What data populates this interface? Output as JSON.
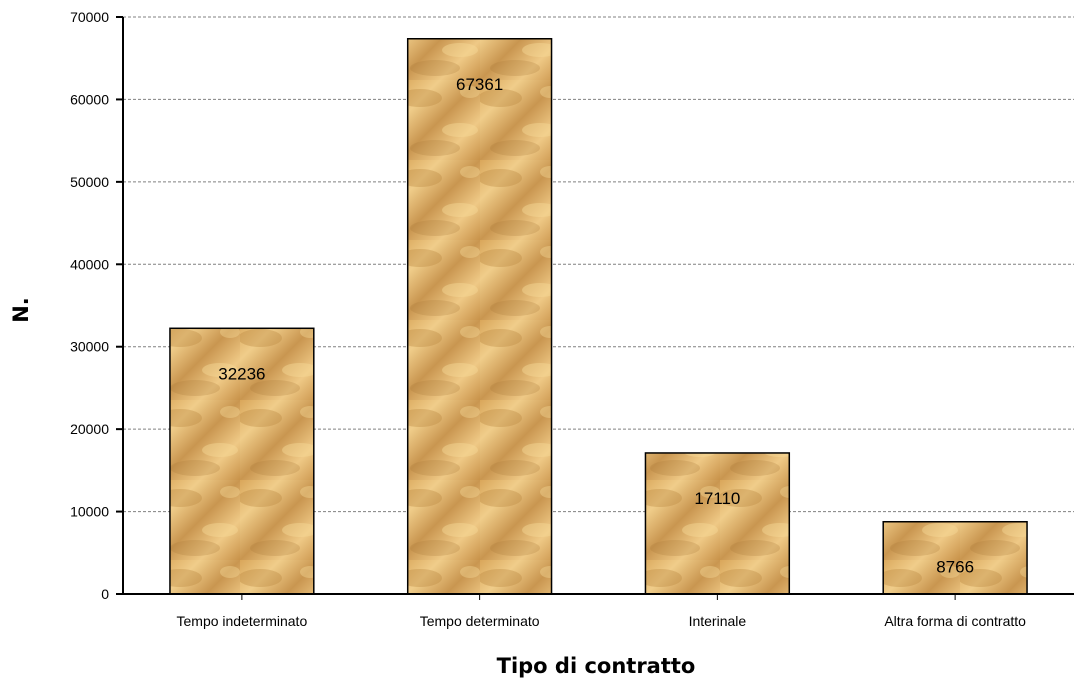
{
  "chart_data": {
    "type": "bar",
    "title": "",
    "xlabel": "Tipo di contratto",
    "ylabel": "N.",
    "categories": [
      "Tempo indeterminato",
      "Tempo determinato",
      "Interinale",
      "Altra forma di contratto"
    ],
    "values": [
      32236,
      67361,
      17110,
      8766
    ],
    "data_labels": [
      "32236",
      "67361",
      "17110",
      "8766"
    ],
    "ylim": [
      0,
      70000
    ],
    "yticks": [
      0,
      10000,
      20000,
      30000,
      40000,
      50000,
      60000,
      70000
    ],
    "ytick_labels": [
      "0",
      "10000",
      "20000",
      "30000",
      "40000",
      "50000",
      "60000",
      "70000"
    ],
    "grid": "horizontal dashed",
    "legend": "none",
    "colors": {
      "bar_fill": "#e2b46a",
      "bar_dark": "#b8843d",
      "bar_light": "#f3d28f",
      "bar_border": "#000000",
      "grid": "#808080"
    }
  }
}
